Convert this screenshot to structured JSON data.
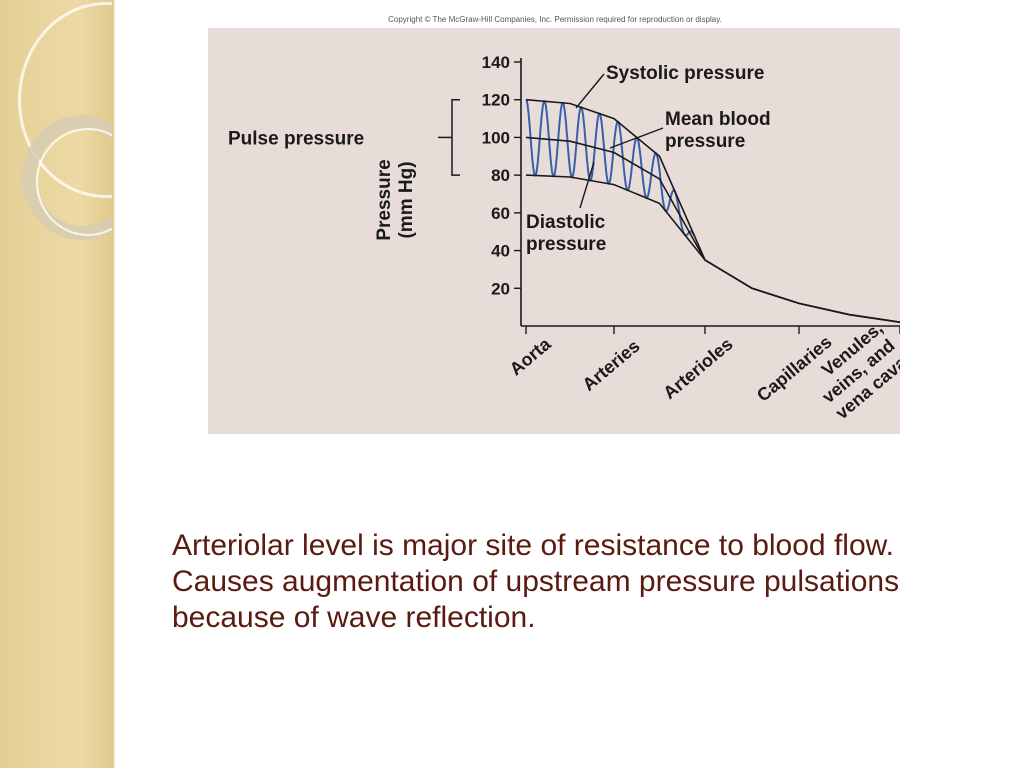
{
  "copyright": "Copyright © The McGraw-Hill Companies, Inc. Permission required for reproduction or display.",
  "caption": {
    "line1": "Arteriolar level is major site of resistance to blood flow.",
    "line2": "Causes augmentation of upstream pressure pulsations because of wave reflection."
  },
  "chart_data": {
    "type": "line",
    "ylabel": [
      "Pressure",
      "(mm Hg)"
    ],
    "ylim": [
      0,
      140
    ],
    "yticks": [
      20,
      40,
      60,
      80,
      100,
      120,
      140
    ],
    "categories": [
      "Aorta",
      "Arteries",
      "Arterioles",
      "Capillaries",
      "Venules, veins, and vena cava"
    ],
    "category_lines": [
      [
        "Aorta"
      ],
      [
        "Arteries"
      ],
      [
        "Arterioles"
      ],
      [
        "Capillaries"
      ],
      [
        "Venules,",
        "veins, and",
        "vena cava"
      ]
    ],
    "x": [
      0,
      0.5,
      1,
      1.5,
      2,
      2.5,
      3,
      3.5,
      4,
      4.5,
      5
    ],
    "series": [
      {
        "name": "Systolic pressure",
        "values": [
          120,
          118,
          110,
          90,
          35,
          20,
          12,
          6,
          2,
          0,
          0
        ]
      },
      {
        "name": "Mean blood pressure",
        "values": [
          100,
          98,
          92,
          78,
          35,
          20,
          12,
          6,
          2,
          0,
          0
        ]
      },
      {
        "name": "Diastolic pressure",
        "values": [
          80,
          79,
          75,
          65,
          35,
          20,
          12,
          6,
          2,
          0,
          0
        ]
      }
    ],
    "annotations": {
      "systolic": "Systolic pressure",
      "mean": [
        "Mean blood",
        "pressure"
      ],
      "diastolic": [
        "Diastolic",
        "pressure"
      ],
      "pulse": "Pulse pressure"
    },
    "colors": {
      "pulse_wave": "#3a5fa8",
      "lines": "#1a1a1a"
    }
  }
}
